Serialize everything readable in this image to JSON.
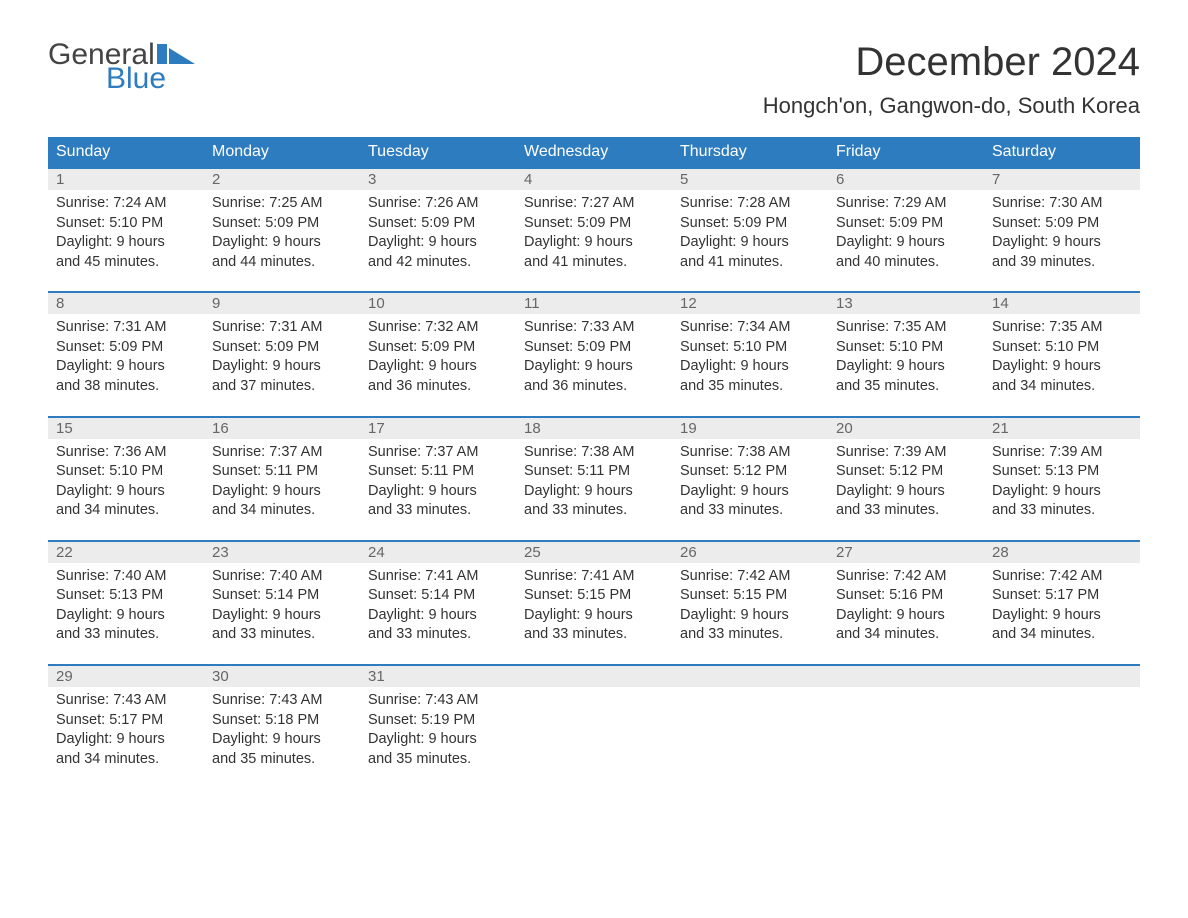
{
  "brand": {
    "general": "General",
    "blue": "Blue",
    "flag_color": "#2e7cc0"
  },
  "title": "December 2024",
  "location": "Hongch'on, Gangwon-do, South Korea",
  "colors": {
    "header_bg": "#2e7cc0",
    "header_text": "#ffffff",
    "date_bg": "#ececec",
    "date_border": "#2e7cc0",
    "date_text": "#666666",
    "body_text": "#333333",
    "page_bg": "#ffffff"
  },
  "day_headers": [
    "Sunday",
    "Monday",
    "Tuesday",
    "Wednesday",
    "Thursday",
    "Friday",
    "Saturday"
  ],
  "weeks": [
    [
      {
        "n": "1",
        "sr": "Sunrise: 7:24 AM",
        "ss": "Sunset: 5:10 PM",
        "d1": "Daylight: 9 hours",
        "d2": "and 45 minutes."
      },
      {
        "n": "2",
        "sr": "Sunrise: 7:25 AM",
        "ss": "Sunset: 5:09 PM",
        "d1": "Daylight: 9 hours",
        "d2": "and 44 minutes."
      },
      {
        "n": "3",
        "sr": "Sunrise: 7:26 AM",
        "ss": "Sunset: 5:09 PM",
        "d1": "Daylight: 9 hours",
        "d2": "and 42 minutes."
      },
      {
        "n": "4",
        "sr": "Sunrise: 7:27 AM",
        "ss": "Sunset: 5:09 PM",
        "d1": "Daylight: 9 hours",
        "d2": "and 41 minutes."
      },
      {
        "n": "5",
        "sr": "Sunrise: 7:28 AM",
        "ss": "Sunset: 5:09 PM",
        "d1": "Daylight: 9 hours",
        "d2": "and 41 minutes."
      },
      {
        "n": "6",
        "sr": "Sunrise: 7:29 AM",
        "ss": "Sunset: 5:09 PM",
        "d1": "Daylight: 9 hours",
        "d2": "and 40 minutes."
      },
      {
        "n": "7",
        "sr": "Sunrise: 7:30 AM",
        "ss": "Sunset: 5:09 PM",
        "d1": "Daylight: 9 hours",
        "d2": "and 39 minutes."
      }
    ],
    [
      {
        "n": "8",
        "sr": "Sunrise: 7:31 AM",
        "ss": "Sunset: 5:09 PM",
        "d1": "Daylight: 9 hours",
        "d2": "and 38 minutes."
      },
      {
        "n": "9",
        "sr": "Sunrise: 7:31 AM",
        "ss": "Sunset: 5:09 PM",
        "d1": "Daylight: 9 hours",
        "d2": "and 37 minutes."
      },
      {
        "n": "10",
        "sr": "Sunrise: 7:32 AM",
        "ss": "Sunset: 5:09 PM",
        "d1": "Daylight: 9 hours",
        "d2": "and 36 minutes."
      },
      {
        "n": "11",
        "sr": "Sunrise: 7:33 AM",
        "ss": "Sunset: 5:09 PM",
        "d1": "Daylight: 9 hours",
        "d2": "and 36 minutes."
      },
      {
        "n": "12",
        "sr": "Sunrise: 7:34 AM",
        "ss": "Sunset: 5:10 PM",
        "d1": "Daylight: 9 hours",
        "d2": "and 35 minutes."
      },
      {
        "n": "13",
        "sr": "Sunrise: 7:35 AM",
        "ss": "Sunset: 5:10 PM",
        "d1": "Daylight: 9 hours",
        "d2": "and 35 minutes."
      },
      {
        "n": "14",
        "sr": "Sunrise: 7:35 AM",
        "ss": "Sunset: 5:10 PM",
        "d1": "Daylight: 9 hours",
        "d2": "and 34 minutes."
      }
    ],
    [
      {
        "n": "15",
        "sr": "Sunrise: 7:36 AM",
        "ss": "Sunset: 5:10 PM",
        "d1": "Daylight: 9 hours",
        "d2": "and 34 minutes."
      },
      {
        "n": "16",
        "sr": "Sunrise: 7:37 AM",
        "ss": "Sunset: 5:11 PM",
        "d1": "Daylight: 9 hours",
        "d2": "and 34 minutes."
      },
      {
        "n": "17",
        "sr": "Sunrise: 7:37 AM",
        "ss": "Sunset: 5:11 PM",
        "d1": "Daylight: 9 hours",
        "d2": "and 33 minutes."
      },
      {
        "n": "18",
        "sr": "Sunrise: 7:38 AM",
        "ss": "Sunset: 5:11 PM",
        "d1": "Daylight: 9 hours",
        "d2": "and 33 minutes."
      },
      {
        "n": "19",
        "sr": "Sunrise: 7:38 AM",
        "ss": "Sunset: 5:12 PM",
        "d1": "Daylight: 9 hours",
        "d2": "and 33 minutes."
      },
      {
        "n": "20",
        "sr": "Sunrise: 7:39 AM",
        "ss": "Sunset: 5:12 PM",
        "d1": "Daylight: 9 hours",
        "d2": "and 33 minutes."
      },
      {
        "n": "21",
        "sr": "Sunrise: 7:39 AM",
        "ss": "Sunset: 5:13 PM",
        "d1": "Daylight: 9 hours",
        "d2": "and 33 minutes."
      }
    ],
    [
      {
        "n": "22",
        "sr": "Sunrise: 7:40 AM",
        "ss": "Sunset: 5:13 PM",
        "d1": "Daylight: 9 hours",
        "d2": "and 33 minutes."
      },
      {
        "n": "23",
        "sr": "Sunrise: 7:40 AM",
        "ss": "Sunset: 5:14 PM",
        "d1": "Daylight: 9 hours",
        "d2": "and 33 minutes."
      },
      {
        "n": "24",
        "sr": "Sunrise: 7:41 AM",
        "ss": "Sunset: 5:14 PM",
        "d1": "Daylight: 9 hours",
        "d2": "and 33 minutes."
      },
      {
        "n": "25",
        "sr": "Sunrise: 7:41 AM",
        "ss": "Sunset: 5:15 PM",
        "d1": "Daylight: 9 hours",
        "d2": "and 33 minutes."
      },
      {
        "n": "26",
        "sr": "Sunrise: 7:42 AM",
        "ss": "Sunset: 5:15 PM",
        "d1": "Daylight: 9 hours",
        "d2": "and 33 minutes."
      },
      {
        "n": "27",
        "sr": "Sunrise: 7:42 AM",
        "ss": "Sunset: 5:16 PM",
        "d1": "Daylight: 9 hours",
        "d2": "and 34 minutes."
      },
      {
        "n": "28",
        "sr": "Sunrise: 7:42 AM",
        "ss": "Sunset: 5:17 PM",
        "d1": "Daylight: 9 hours",
        "d2": "and 34 minutes."
      }
    ],
    [
      {
        "n": "29",
        "sr": "Sunrise: 7:43 AM",
        "ss": "Sunset: 5:17 PM",
        "d1": "Daylight: 9 hours",
        "d2": "and 34 minutes."
      },
      {
        "n": "30",
        "sr": "Sunrise: 7:43 AM",
        "ss": "Sunset: 5:18 PM",
        "d1": "Daylight: 9 hours",
        "d2": "and 35 minutes."
      },
      {
        "n": "31",
        "sr": "Sunrise: 7:43 AM",
        "ss": "Sunset: 5:19 PM",
        "d1": "Daylight: 9 hours",
        "d2": "and 35 minutes."
      },
      null,
      null,
      null,
      null
    ]
  ]
}
